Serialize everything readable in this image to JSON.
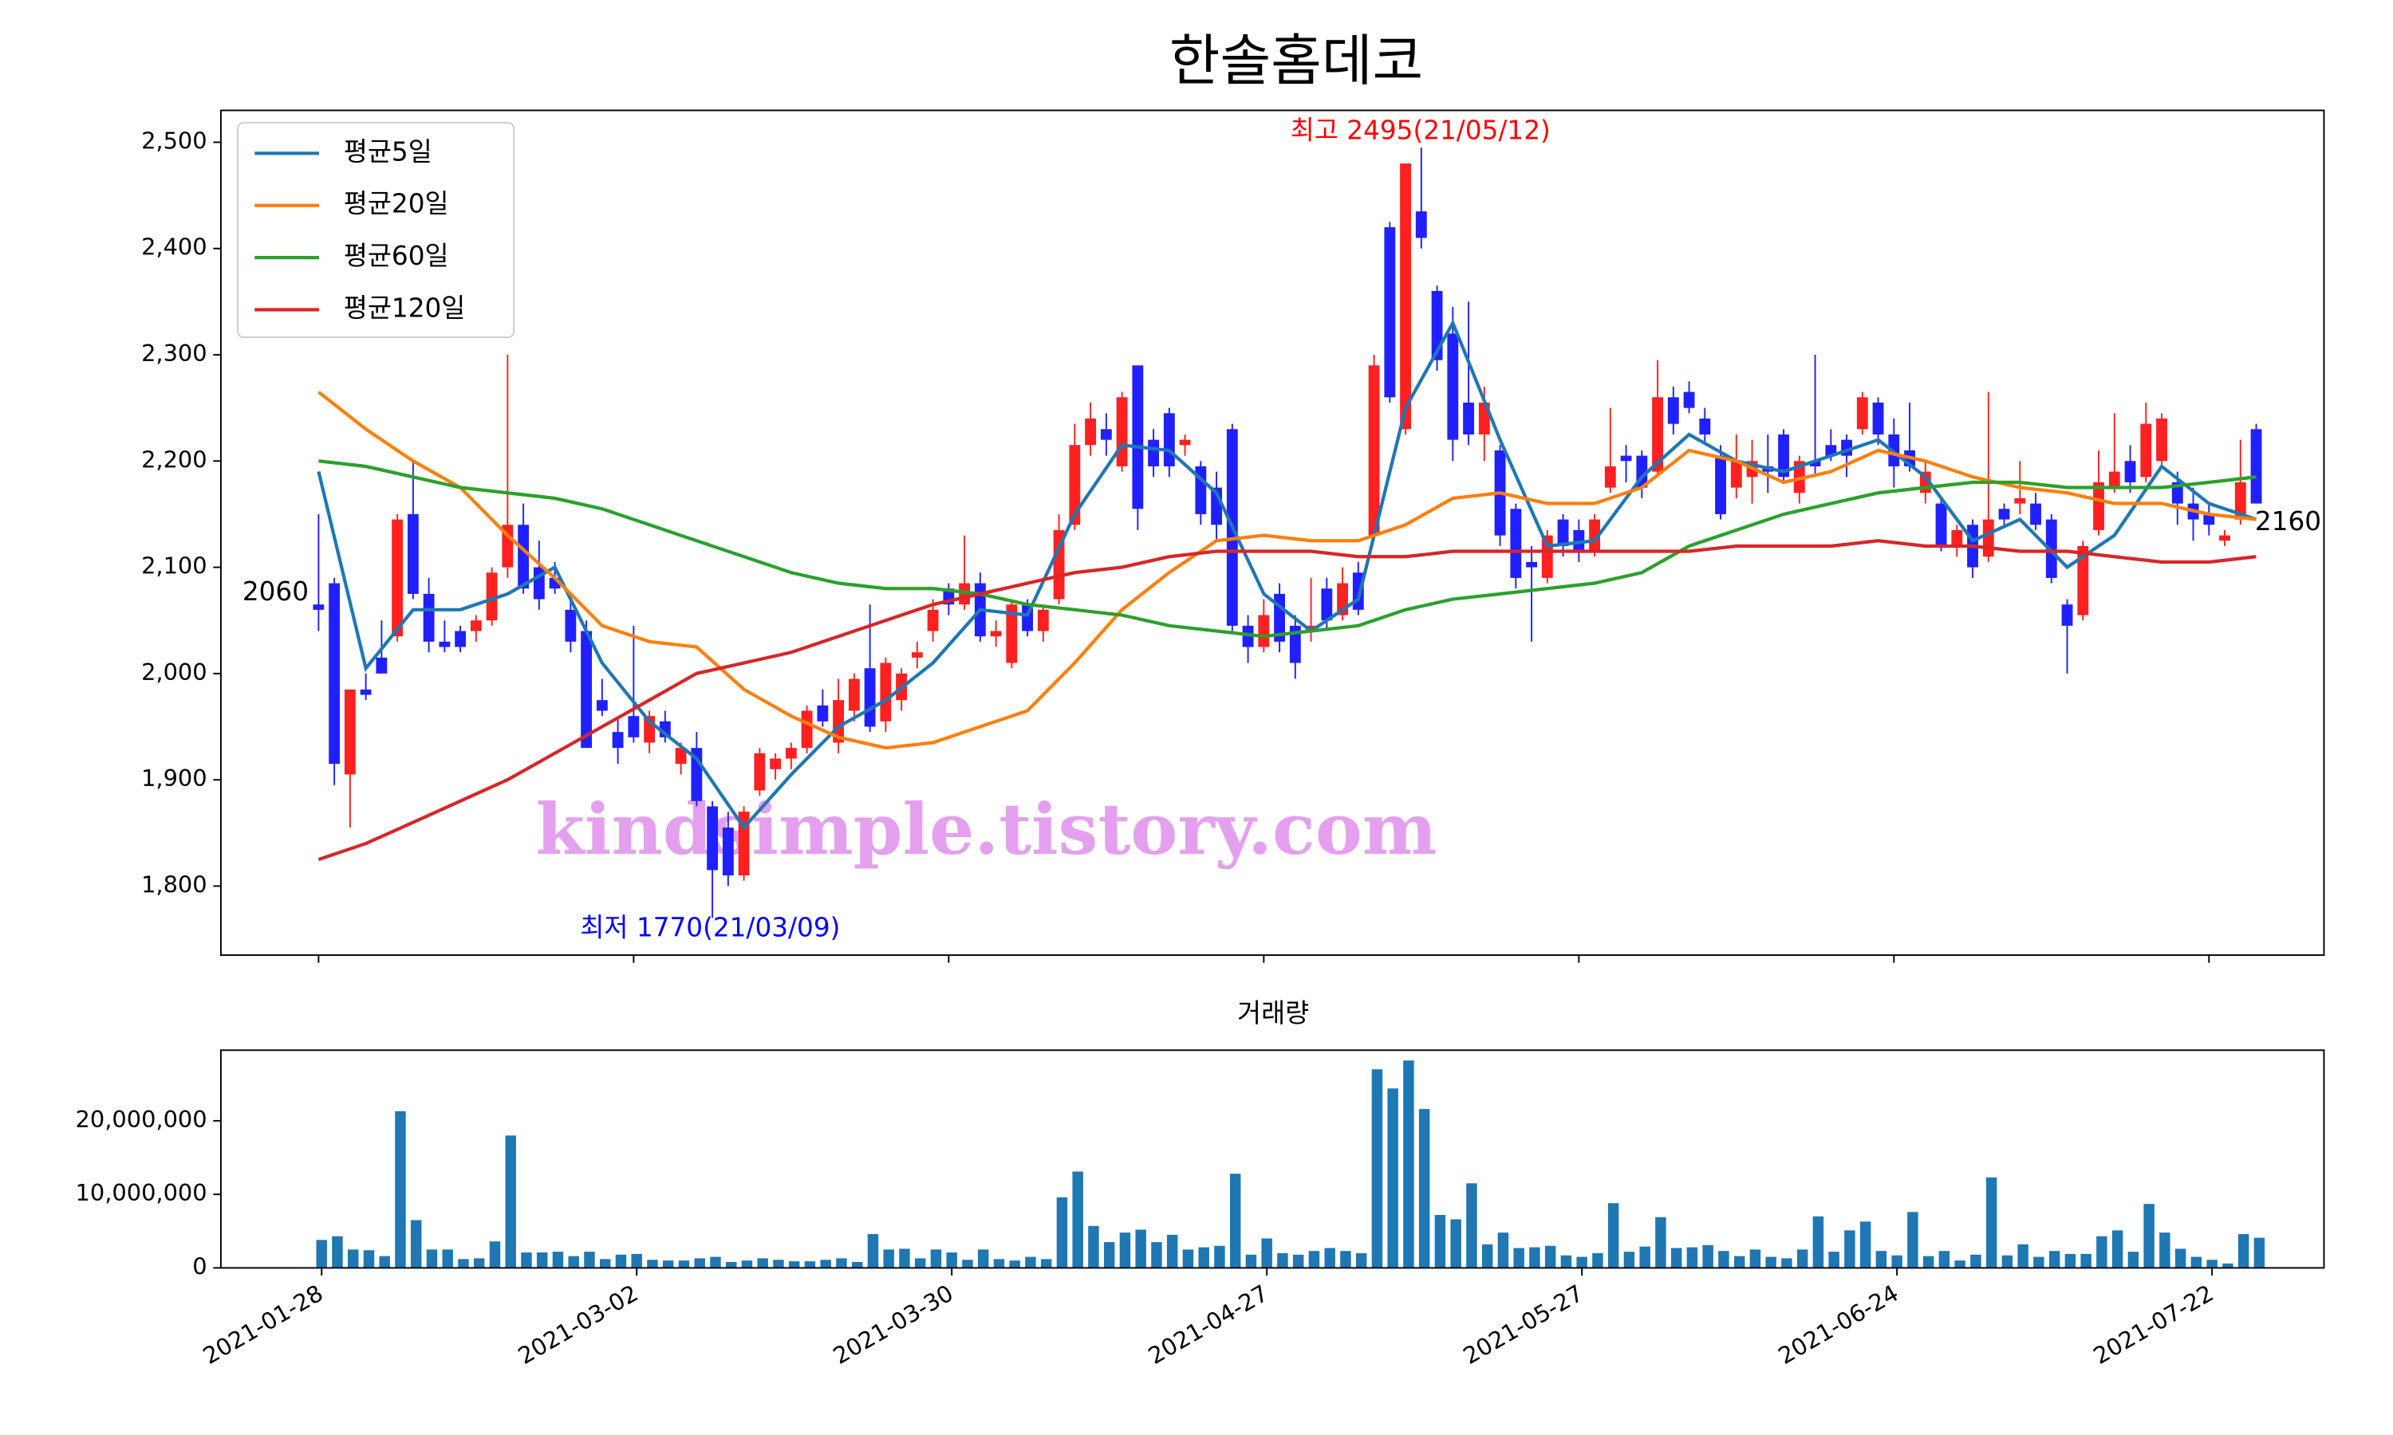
{
  "chart_data": [
    {
      "type": "candlestick",
      "title": "한솔홈데코",
      "legend": "upper left",
      "watermark": "kindsimple.tistory.com",
      "up_color": "#ff2020",
      "down_color": "#2020ff",
      "xlim": [
        -6.2,
        127.3
      ],
      "ylim": [
        1735,
        2530
      ],
      "yticks": [
        {
          "value": 1800,
          "label": "1,800"
        },
        {
          "value": 1900,
          "label": "1,900"
        },
        {
          "value": 2000,
          "label": "2,000"
        },
        {
          "value": 2100,
          "label": "2,100"
        },
        {
          "value": 2200,
          "label": "2,200"
        },
        {
          "value": 2300,
          "label": "2,300"
        },
        {
          "value": 2400,
          "label": "2,400"
        },
        {
          "value": 2500,
          "label": "2,500"
        }
      ],
      "annotations": [
        {
          "text": "최고 2495(21/05/12)",
          "color": "#ff0000"
        },
        {
          "text": "최저 1770(21/03/09)",
          "color": "#0000ff"
        },
        {
          "text": "2060",
          "color": "#000000"
        },
        {
          "text": "2160",
          "color": "#000000"
        }
      ],
      "ohlc": [
        [
          2065,
          2150,
          2040,
          2060
        ],
        [
          2085,
          2090,
          1895,
          1915
        ],
        [
          1905,
          1985,
          1855,
          1985
        ],
        [
          1985,
          2000,
          1975,
          1980
        ],
        [
          2015,
          2050,
          2000,
          2000
        ],
        [
          2035,
          2150,
          2030,
          2145
        ],
        [
          2150,
          2200,
          2070,
          2075
        ],
        [
          2075,
          2090,
          2020,
          2030
        ],
        [
          2030,
          2050,
          2020,
          2025
        ],
        [
          2040,
          2045,
          2020,
          2025
        ],
        [
          2040,
          2055,
          2030,
          2050
        ],
        [
          2050,
          2100,
          2045,
          2095
        ],
        [
          2100,
          2300,
          2090,
          2140
        ],
        [
          2140,
          2160,
          2075,
          2080
        ],
        [
          2100,
          2125,
          2060,
          2070
        ],
        [
          2090,
          2105,
          2075,
          2080
        ],
        [
          2060,
          2075,
          2020,
          2030
        ],
        [
          2040,
          2050,
          1930,
          1930
        ],
        [
          1975,
          1995,
          1960,
          1965
        ],
        [
          1945,
          1960,
          1915,
          1930
        ],
        [
          1960,
          2045,
          1935,
          1940
        ],
        [
          1935,
          1965,
          1925,
          1960
        ],
        [
          1955,
          1965,
          1935,
          1940
        ],
        [
          1915,
          1935,
          1905,
          1930
        ],
        [
          1930,
          1945,
          1875,
          1880
        ],
        [
          1875,
          1880,
          1770,
          1815
        ],
        [
          1855,
          1870,
          1800,
          1810
        ],
        [
          1810,
          1875,
          1805,
          1870
        ],
        [
          1890,
          1930,
          1885,
          1925
        ],
        [
          1910,
          1925,
          1900,
          1920
        ],
        [
          1920,
          1935,
          1910,
          1930
        ],
        [
          1930,
          1970,
          1925,
          1965
        ],
        [
          1970,
          1985,
          1950,
          1955
        ],
        [
          1935,
          1995,
          1925,
          1975
        ],
        [
          1965,
          2000,
          1955,
          1995
        ],
        [
          2005,
          2065,
          1945,
          1950
        ],
        [
          1955,
          2015,
          1945,
          2010
        ],
        [
          1975,
          2005,
          1965,
          2000
        ],
        [
          2015,
          2030,
          2005,
          2020
        ],
        [
          2040,
          2070,
          2030,
          2060
        ],
        [
          2080,
          2085,
          2055,
          2065
        ],
        [
          2065,
          2130,
          2060,
          2085
        ],
        [
          2085,
          2095,
          2030,
          2035
        ],
        [
          2035,
          2050,
          2025,
          2040
        ],
        [
          2010,
          2070,
          2005,
          2065
        ],
        [
          2065,
          2070,
          2035,
          2040
        ],
        [
          2040,
          2065,
          2030,
          2060
        ],
        [
          2070,
          2150,
          2065,
          2135
        ],
        [
          2140,
          2235,
          2135,
          2215
        ],
        [
          2215,
          2255,
          2205,
          2240
        ],
        [
          2230,
          2245,
          2205,
          2220
        ],
        [
          2195,
          2265,
          2190,
          2260
        ],
        [
          2290,
          2290,
          2135,
          2155
        ],
        [
          2220,
          2230,
          2185,
          2195
        ],
        [
          2245,
          2250,
          2185,
          2195
        ],
        [
          2215,
          2225,
          2205,
          2220
        ],
        [
          2195,
          2200,
          2140,
          2150
        ],
        [
          2175,
          2190,
          2125,
          2140
        ],
        [
          2230,
          2235,
          2040,
          2045
        ],
        [
          2045,
          2055,
          2010,
          2025
        ],
        [
          2025,
          2070,
          2020,
          2055
        ],
        [
          2075,
          2085,
          2020,
          2030
        ],
        [
          2045,
          2055,
          1995,
          2010
        ],
        [
          2040,
          2090,
          2030,
          2045
        ],
        [
          2080,
          2090,
          2040,
          2050
        ],
        [
          2055,
          2100,
          2050,
          2085
        ],
        [
          2095,
          2105,
          2055,
          2060
        ],
        [
          2130,
          2300,
          2125,
          2290
        ],
        [
          2420,
          2425,
          2255,
          2260
        ],
        [
          2230,
          2480,
          2225,
          2480
        ],
        [
          2435,
          2495,
          2400,
          2410
        ],
        [
          2360,
          2365,
          2285,
          2295
        ],
        [
          2320,
          2345,
          2200,
          2220
        ],
        [
          2255,
          2350,
          2215,
          2225
        ],
        [
          2225,
          2270,
          2200,
          2255
        ],
        [
          2210,
          2215,
          2120,
          2130
        ],
        [
          2155,
          2160,
          2080,
          2090
        ],
        [
          2105,
          2120,
          2030,
          2100
        ],
        [
          2090,
          2135,
          2085,
          2130
        ],
        [
          2145,
          2150,
          2110,
          2120
        ],
        [
          2135,
          2145,
          2105,
          2115
        ],
        [
          2115,
          2150,
          2110,
          2145
        ],
        [
          2175,
          2250,
          2170,
          2195
        ],
        [
          2205,
          2215,
          2180,
          2200
        ],
        [
          2205,
          2210,
          2165,
          2175
        ],
        [
          2190,
          2295,
          2185,
          2260
        ],
        [
          2260,
          2270,
          2225,
          2235
        ],
        [
          2265,
          2275,
          2245,
          2250
        ],
        [
          2240,
          2250,
          2215,
          2225
        ],
        [
          2205,
          2215,
          2145,
          2150
        ],
        [
          2175,
          2225,
          2165,
          2200
        ],
        [
          2185,
          2220,
          2160,
          2200
        ],
        [
          2195,
          2225,
          2170,
          2190
        ],
        [
          2225,
          2230,
          2180,
          2185
        ],
        [
          2170,
          2205,
          2160,
          2200
        ],
        [
          2200,
          2300,
          2185,
          2195
        ],
        [
          2215,
          2230,
          2200,
          2205
        ],
        [
          2220,
          2225,
          2185,
          2205
        ],
        [
          2230,
          2265,
          2225,
          2260
        ],
        [
          2255,
          2260,
          2215,
          2225
        ],
        [
          2225,
          2240,
          2175,
          2195
        ],
        [
          2210,
          2255,
          2190,
          2195
        ],
        [
          2170,
          2200,
          2160,
          2190
        ],
        [
          2160,
          2165,
          2115,
          2120
        ],
        [
          2120,
          2140,
          2110,
          2135
        ],
        [
          2140,
          2145,
          2090,
          2100
        ],
        [
          2110,
          2265,
          2105,
          2145
        ],
        [
          2155,
          2160,
          2140,
          2145
        ],
        [
          2160,
          2200,
          2150,
          2165
        ],
        [
          2160,
          2170,
          2135,
          2140
        ],
        [
          2145,
          2150,
          2085,
          2090
        ],
        [
          2065,
          2070,
          2000,
          2045
        ],
        [
          2055,
          2125,
          2050,
          2120
        ],
        [
          2135,
          2210,
          2130,
          2180
        ],
        [
          2175,
          2245,
          2170,
          2190
        ],
        [
          2200,
          2215,
          2170,
          2180
        ],
        [
          2185,
          2255,
          2180,
          2235
        ],
        [
          2200,
          2245,
          2195,
          2240
        ],
        [
          2180,
          2190,
          2140,
          2160
        ],
        [
          2160,
          2175,
          2125,
          2145
        ],
        [
          2150,
          2160,
          2130,
          2140
        ],
        [
          2125,
          2135,
          2120,
          2130
        ],
        [
          2145,
          2220,
          2140,
          2180
        ],
        [
          2230,
          2235,
          2160,
          2160
        ]
      ],
      "ma_x": [
        0,
        3,
        6,
        9,
        12,
        15,
        18,
        21,
        24,
        27,
        30,
        33,
        36,
        39,
        42,
        45,
        48,
        51,
        54,
        57,
        60,
        63,
        66,
        69,
        72,
        75,
        78,
        81,
        84,
        87,
        90,
        93,
        96,
        99,
        102,
        105,
        108,
        111,
        114,
        117,
        120,
        123
      ],
      "series": [
        {
          "name": "평균5일",
          "color": "#1f77b4",
          "values": [
            2190,
            2005,
            2060,
            2060,
            2075,
            2100,
            2010,
            1955,
            1920,
            1855,
            1905,
            1950,
            1975,
            2010,
            2060,
            2055,
            2150,
            2215,
            2210,
            2170,
            2075,
            2040,
            2070,
            2250,
            2330,
            2220,
            2120,
            2125,
            2185,
            2225,
            2200,
            2190,
            2205,
            2220,
            2185,
            2125,
            2145,
            2100,
            2130,
            2195,
            2160,
            2145
          ]
        },
        {
          "name": "평균20일",
          "color": "#ff7f0e",
          "values": [
            2265,
            2230,
            2200,
            2175,
            2130,
            2090,
            2045,
            2030,
            2025,
            1985,
            1960,
            1940,
            1930,
            1935,
            1950,
            1965,
            2010,
            2060,
            2095,
            2125,
            2130,
            2125,
            2125,
            2140,
            2165,
            2170,
            2160,
            2160,
            2175,
            2210,
            2200,
            2180,
            2190,
            2210,
            2200,
            2185,
            2175,
            2170,
            2160,
            2160,
            2150,
            2145
          ]
        },
        {
          "name": "평균60일",
          "color": "#2ca02c",
          "values": [
            2200,
            2195,
            2185,
            2175,
            2170,
            2165,
            2155,
            2140,
            2125,
            2110,
            2095,
            2085,
            2080,
            2080,
            2075,
            2065,
            2060,
            2055,
            2045,
            2040,
            2035,
            2040,
            2045,
            2060,
            2070,
            2075,
            2080,
            2085,
            2095,
            2120,
            2135,
            2150,
            2160,
            2170,
            2175,
            2180,
            2180,
            2175,
            2175,
            2175,
            2180,
            2185
          ]
        },
        {
          "name": "평균120일",
          "color": "#d62728",
          "values": [
            1825,
            1840,
            1860,
            1880,
            1900,
            1925,
            1950,
            1975,
            2000,
            2010,
            2020,
            2035,
            2050,
            2065,
            2075,
            2085,
            2095,
            2100,
            2110,
            2115,
            2115,
            2115,
            2110,
            2110,
            2115,
            2115,
            2115,
            2115,
            2115,
            2115,
            2120,
            2120,
            2120,
            2125,
            2120,
            2120,
            2115,
            2115,
            2110,
            2105,
            2105,
            2110
          ]
        }
      ]
    },
    {
      "type": "bar",
      "title": "거래량",
      "color": "#1f77b4",
      "xlim": [
        -6.2,
        127.3
      ],
      "ylim": [
        0,
        29600000
      ],
      "yticks": [
        0,
        {
          "value": 10000000,
          "label": "10,000,000"
        },
        {
          "value": 20000000,
          "label": "20,000,000"
        }
      ],
      "xticks": [
        {
          "value": 0,
          "label": "2021-01-28"
        },
        {
          "value": 20,
          "label": "2021-03-02"
        },
        {
          "value": 40,
          "label": "2021-03-30"
        },
        {
          "value": 60,
          "label": "2021-04-27"
        },
        {
          "value": 80,
          "label": "2021-05-27"
        },
        {
          "value": 100,
          "label": "2021-06-24"
        },
        {
          "value": 120,
          "label": "2021-07-22"
        }
      ],
      "values": [
        3800000,
        4300000,
        2500000,
        2400000,
        1600000,
        21300000,
        6500000,
        2500000,
        2500000,
        1200000,
        1300000,
        3600000,
        18000000,
        2100000,
        2100000,
        2200000,
        1600000,
        2200000,
        1200000,
        1800000,
        1900000,
        1100000,
        1000000,
        1000000,
        1300000,
        1500000,
        800000,
        1000000,
        1300000,
        1100000,
        900000,
        900000,
        1100000,
        1300000,
        800000,
        4600000,
        2500000,
        2600000,
        1300000,
        2500000,
        2100000,
        1100000,
        2500000,
        1200000,
        1000000,
        1500000,
        1200000,
        9600000,
        13100000,
        5700000,
        3500000,
        4800000,
        5200000,
        3500000,
        4500000,
        2500000,
        2800000,
        3000000,
        12800000,
        1800000,
        4000000,
        2000000,
        1800000,
        2300000,
        2700000,
        2300000,
        2000000,
        27000000,
        24400000,
        28200000,
        21600000,
        7200000,
        6600000,
        11500000,
        3200000,
        4800000,
        2700000,
        2800000,
        3000000,
        1700000,
        1500000,
        2000000,
        8800000,
        2200000,
        2900000,
        6900000,
        2700000,
        2800000,
        3100000,
        2300000,
        1600000,
        2500000,
        1500000,
        1300000,
        2500000,
        7000000,
        2200000,
        5100000,
        6300000,
        2300000,
        1700000,
        7600000,
        1600000,
        2300000,
        1000000,
        1800000,
        12300000,
        1700000,
        3200000,
        1500000,
        2300000,
        1900000,
        1900000,
        4300000,
        5100000,
        2200000,
        8700000,
        4800000,
        2600000,
        1500000,
        1100000,
        600000,
        4600000,
        4100000
      ]
    }
  ]
}
